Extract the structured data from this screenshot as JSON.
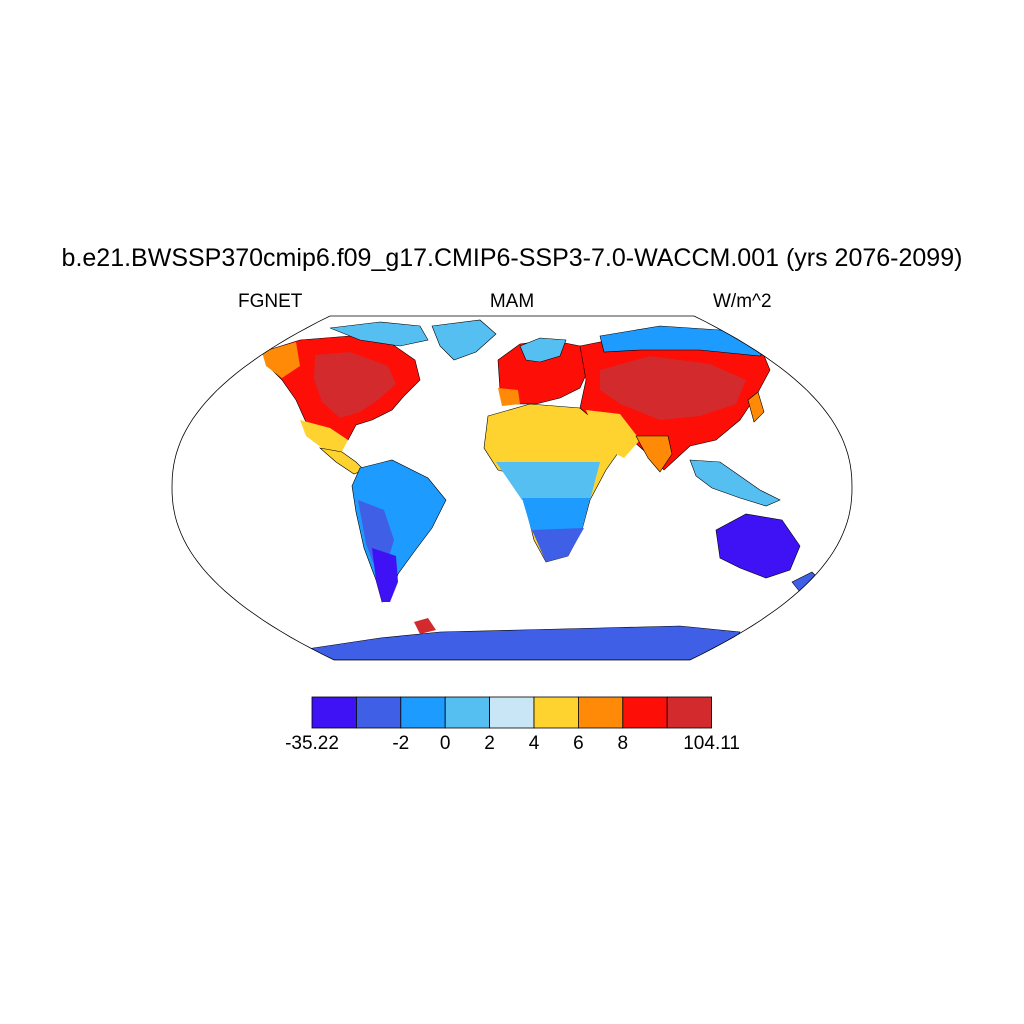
{
  "title": "b.e21.BWSSP370cmip6.f09_g17.CMIP6-SSP3-7.0-WACCM.001 (yrs 2076-2099)",
  "left_string": "FGNET",
  "center_string": "MAM",
  "right_string": "W/m^2",
  "colorbar": {
    "colors": [
      "#3f12f5",
      "#3e5fe6",
      "#1e9bff",
      "#55bff2",
      "#c9e6f6",
      "#fed32f",
      "#fe8a08",
      "#fd0e06",
      "#d32a2d"
    ],
    "labels": [
      "-35.22",
      "-2",
      "0",
      "2",
      "4",
      "6",
      "8",
      "104.11"
    ],
    "label_boundaries": [
      0,
      2,
      3,
      4,
      5,
      6,
      7,
      9
    ]
  },
  "map": {
    "projection": "robinson",
    "border_color": "#000000",
    "background": "#ffffff"
  }
}
